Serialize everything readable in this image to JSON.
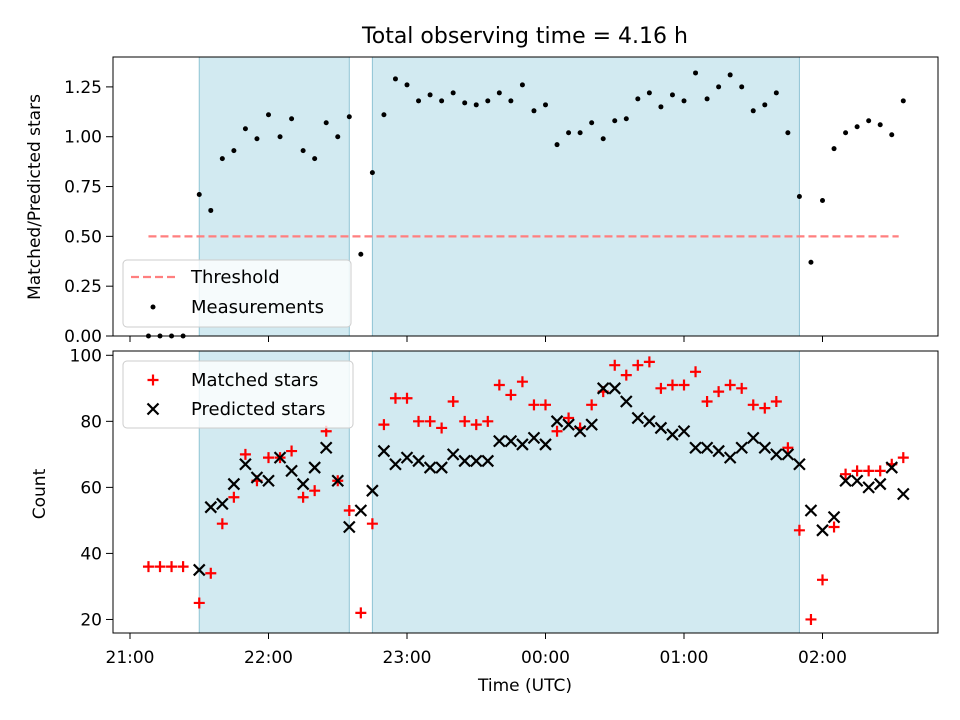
{
  "chart_data": [
    {
      "type": "scatter",
      "title": "Total observing time = 4.16 h",
      "xlabel": "",
      "ylabel": "Matched/Predicted stars",
      "ylim": [
        0,
        1.4
      ],
      "yticks": [
        "0.00",
        "0.25",
        "0.50",
        "0.75",
        "1.00",
        "1.25"
      ],
      "legend": "lower-left",
      "series": [
        {
          "name": "Threshold",
          "kind": "dashed-line",
          "color": "#ff7f7f",
          "x": [
            "21:08",
            "02:33"
          ],
          "values": [
            0.5,
            0.5
          ]
        },
        {
          "name": "Measurements",
          "kind": "point",
          "color": "#000000",
          "x": [
            "21:08",
            "21:13",
            "21:18",
            "21:23",
            "21:30",
            "21:35",
            "21:40",
            "21:45",
            "21:50",
            "21:55",
            "22:00",
            "22:05",
            "22:10",
            "22:15",
            "22:20",
            "22:25",
            "22:30",
            "22:35",
            "22:40",
            "22:45",
            "22:50",
            "22:55",
            "23:00",
            "23:05",
            "23:10",
            "23:15",
            "23:20",
            "23:25",
            "23:30",
            "23:35",
            "23:40",
            "23:45",
            "23:50",
            "23:55",
            "00:00",
            "00:05",
            "00:10",
            "00:15",
            "00:20",
            "00:25",
            "00:30",
            "00:35",
            "00:40",
            "00:45",
            "00:50",
            "00:55",
            "01:00",
            "01:05",
            "01:10",
            "01:15",
            "01:20",
            "01:25",
            "01:30",
            "01:35",
            "01:40",
            "01:45",
            "01:50",
            "01:55",
            "02:00",
            "02:05",
            "02:10",
            "02:15",
            "02:20",
            "02:25",
            "02:30",
            "02:35"
          ],
          "values": [
            0,
            0,
            0,
            0,
            0.71,
            0.63,
            0.89,
            0.93,
            1.04,
            0.99,
            1.11,
            1.0,
            1.09,
            0.93,
            0.89,
            1.07,
            1.0,
            1.1,
            0.41,
            0.82,
            1.11,
            1.29,
            1.26,
            1.18,
            1.21,
            1.18,
            1.22,
            1.17,
            1.16,
            1.18,
            1.22,
            1.18,
            1.26,
            1.13,
            1.16,
            0.96,
            1.02,
            1.02,
            1.07,
            0.99,
            1.08,
            1.09,
            1.19,
            1.22,
            1.15,
            1.21,
            1.18,
            1.32,
            1.19,
            1.25,
            1.31,
            1.25,
            1.13,
            1.16,
            1.22,
            1.02,
            0.7,
            0.37,
            0.68,
            0.94,
            1.02,
            1.05,
            1.08,
            1.06,
            1.01,
            1.18
          ]
        }
      ],
      "shaded_intervals": [
        [
          "21:30",
          "22:35"
        ],
        [
          "22:45",
          "01:50"
        ]
      ],
      "shade_color": "#add8e6"
    },
    {
      "type": "scatter",
      "title": "",
      "xlabel": "Time (UTC)",
      "ylabel": "Count",
      "ylim": [
        15.9,
        101.3
      ],
      "yticks": [
        "20",
        "40",
        "60",
        "80",
        "100"
      ],
      "xticks": [
        "21:00",
        "22:00",
        "23:00",
        "00:00",
        "01:00",
        "02:00"
      ],
      "legend": "upper-left",
      "series": [
        {
          "name": "Matched stars",
          "kind": "plus",
          "color": "#ff0000",
          "x": [
            "21:08",
            "21:13",
            "21:18",
            "21:23",
            "21:30",
            "21:35",
            "21:40",
            "21:45",
            "21:50",
            "21:55",
            "22:00",
            "22:05",
            "22:10",
            "22:15",
            "22:20",
            "22:25",
            "22:30",
            "22:35",
            "22:40",
            "22:45",
            "22:50",
            "22:55",
            "23:00",
            "23:05",
            "23:10",
            "23:15",
            "23:20",
            "23:25",
            "23:30",
            "23:35",
            "23:40",
            "23:45",
            "23:50",
            "23:55",
            "00:00",
            "00:05",
            "00:10",
            "00:15",
            "00:20",
            "00:25",
            "00:30",
            "00:35",
            "00:40",
            "00:45",
            "00:50",
            "00:55",
            "01:00",
            "01:05",
            "01:10",
            "01:15",
            "01:20",
            "01:25",
            "01:30",
            "01:35",
            "01:40",
            "01:45",
            "01:50",
            "01:55",
            "02:00",
            "02:05",
            "02:10",
            "02:15",
            "02:20",
            "02:25",
            "02:30",
            "02:35"
          ],
          "values": [
            36,
            36,
            36,
            36,
            25,
            34,
            49,
            57,
            70,
            62,
            69,
            69,
            71,
            57,
            59,
            77,
            62,
            53,
            22,
            49,
            79,
            87,
            87,
            80,
            80,
            78,
            86,
            80,
            79,
            80,
            91,
            88,
            92,
            85,
            85,
            77,
            81,
            78,
            85,
            89,
            97,
            94,
            97,
            98,
            90,
            91,
            91,
            95,
            86,
            89,
            91,
            90,
            85,
            84,
            86,
            72,
            47,
            20,
            32,
            48,
            64,
            65,
            65,
            65,
            67,
            69
          ]
        },
        {
          "name": "Predicted stars",
          "kind": "x",
          "color": "#000000",
          "x": [
            "21:30",
            "21:35",
            "21:40",
            "21:45",
            "21:50",
            "21:55",
            "22:00",
            "22:05",
            "22:10",
            "22:15",
            "22:20",
            "22:25",
            "22:30",
            "22:35",
            "22:40",
            "22:45",
            "22:50",
            "22:55",
            "23:00",
            "23:05",
            "23:10",
            "23:15",
            "23:20",
            "23:25",
            "23:30",
            "23:35",
            "23:40",
            "23:45",
            "23:50",
            "23:55",
            "00:00",
            "00:05",
            "00:10",
            "00:15",
            "00:20",
            "00:25",
            "00:30",
            "00:35",
            "00:40",
            "00:45",
            "00:50",
            "00:55",
            "01:00",
            "01:05",
            "01:10",
            "01:15",
            "01:20",
            "01:25",
            "01:30",
            "01:35",
            "01:40",
            "01:45",
            "01:50",
            "01:55",
            "02:00",
            "02:05",
            "02:10",
            "02:15",
            "02:20",
            "02:25",
            "02:30",
            "02:35"
          ],
          "values": [
            35,
            54,
            55,
            61,
            67,
            63,
            62,
            69,
            65,
            61,
            66,
            72,
            62,
            48,
            53,
            59,
            71,
            67,
            69,
            68,
            66,
            66,
            70,
            68,
            68,
            68,
            74,
            74,
            73,
            75,
            73,
            80,
            79,
            77,
            79,
            90,
            90,
            86,
            81,
            80,
            78,
            76,
            77,
            72,
            72,
            71,
            69,
            72,
            75,
            72,
            70,
            70,
            67,
            53,
            47,
            51,
            62,
            62,
            60,
            61,
            66,
            58
          ]
        }
      ],
      "shaded_intervals": [
        [
          "21:30",
          "22:35"
        ],
        [
          "22:45",
          "01:50"
        ]
      ],
      "shade_color": "#add8e6"
    }
  ]
}
